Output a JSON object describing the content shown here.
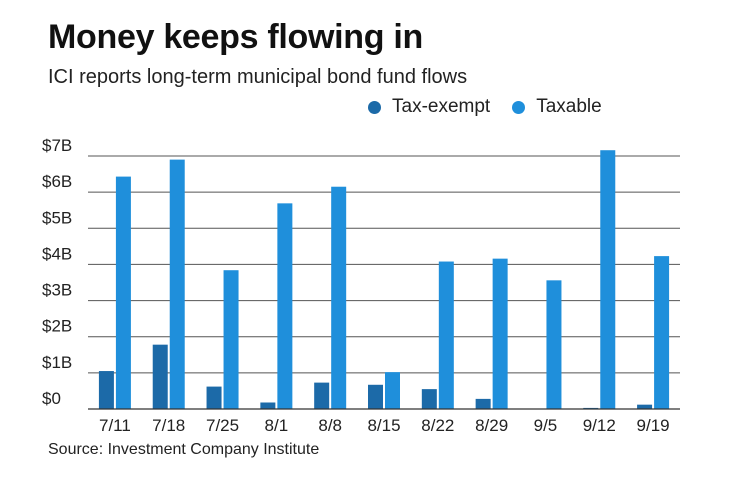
{
  "header": {
    "title": "Money keeps flowing in",
    "subtitle": "ICI reports long-term municipal bond fund flows"
  },
  "footer": {
    "source": "Source: Investment Company Institute"
  },
  "colors": {
    "tax_exempt": "#1c6aa8",
    "taxable": "#1f8fdb",
    "grid": "#555555"
  },
  "chart_data": {
    "type": "bar",
    "title": "Money keeps flowing in",
    "subtitle": "ICI reports long-term municipal bond fund flows",
    "categories": [
      "7/11",
      "7/18",
      "7/25",
      "8/1",
      "8/8",
      "8/15",
      "8/22",
      "8/29",
      "9/5",
      "9/12",
      "9/19"
    ],
    "series": [
      {
        "name": "Tax-exempt",
        "values": [
          1.05,
          1.78,
          0.62,
          0.18,
          0.73,
          0.67,
          0.55,
          0.28,
          0.0,
          0.03,
          0.12
        ]
      },
      {
        "name": "Taxable",
        "values": [
          6.43,
          6.9,
          3.84,
          5.69,
          6.15,
          1.02,
          4.08,
          4.16,
          3.56,
          7.16,
          4.23
        ]
      }
    ],
    "yticks": [
      "$0",
      "$1B",
      "$2B",
      "$3B",
      "$4B",
      "$5B",
      "$6B",
      "$7B"
    ],
    "ylim": [
      0,
      7
    ],
    "xlabel": "",
    "ylabel": "",
    "grid": true,
    "legend": "top-right"
  }
}
